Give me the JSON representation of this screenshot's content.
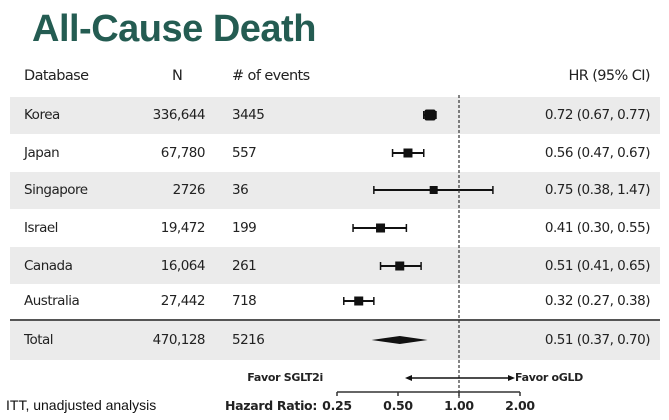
{
  "chart_data": {
    "type": "forest",
    "title": "All-Cause Death",
    "columns": [
      "Database",
      "N",
      "# of events",
      "HR (95% CI)"
    ],
    "rows": [
      {
        "database": "Korea",
        "n": "336,644",
        "events": "3445",
        "hr": 0.72,
        "lo": 0.67,
        "hi": 0.77,
        "hr_text": "0.72 (0.67, 0.77)"
      },
      {
        "database": "Japan",
        "n": "67,780",
        "events": "557",
        "hr": 0.56,
        "lo": 0.47,
        "hi": 0.67,
        "hr_text": "0.56 (0.47, 0.67)"
      },
      {
        "database": "Singapore",
        "n": "2726",
        "events": "36",
        "hr": 0.75,
        "lo": 0.38,
        "hi": 1.47,
        "hr_text": "0.75 (0.38, 1.47)"
      },
      {
        "database": "Israel",
        "n": "19,472",
        "events": "199",
        "hr": 0.41,
        "lo": 0.3,
        "hi": 0.55,
        "hr_text": "0.41 (0.30, 0.55)"
      },
      {
        "database": "Canada",
        "n": "16,064",
        "events": "261",
        "hr": 0.51,
        "lo": 0.41,
        "hi": 0.65,
        "hr_text": "0.51 (0.41, 0.65)"
      },
      {
        "database": "Australia",
        "n": "27,442",
        "events": "718",
        "hr": 0.32,
        "lo": 0.27,
        "hi": 0.38,
        "hr_text": "0.32 (0.27, 0.38)"
      }
    ],
    "total": {
      "database": "Total",
      "n": "470,128",
      "events": "5216",
      "hr": 0.51,
      "lo": 0.37,
      "hi": 0.7,
      "hr_text": "0.51 (0.37, 0.70)"
    },
    "xlabel": "Hazard Ratio:",
    "xscale": "log",
    "xticks": [
      0.25,
      0.5,
      1.0,
      2.0
    ],
    "xtick_labels": [
      "0.25",
      "0.50",
      "1.00",
      "2.00"
    ],
    "xlim": [
      0.25,
      2.0
    ],
    "reference_line": 1.0,
    "favor_left": "Favor SGLT2i",
    "favor_right": "Favor oGLD",
    "footnote": "ITT, unadjusted analysis",
    "colors": {
      "title": "#245c52",
      "marks": "#111111",
      "band": "#ebebeb"
    }
  }
}
